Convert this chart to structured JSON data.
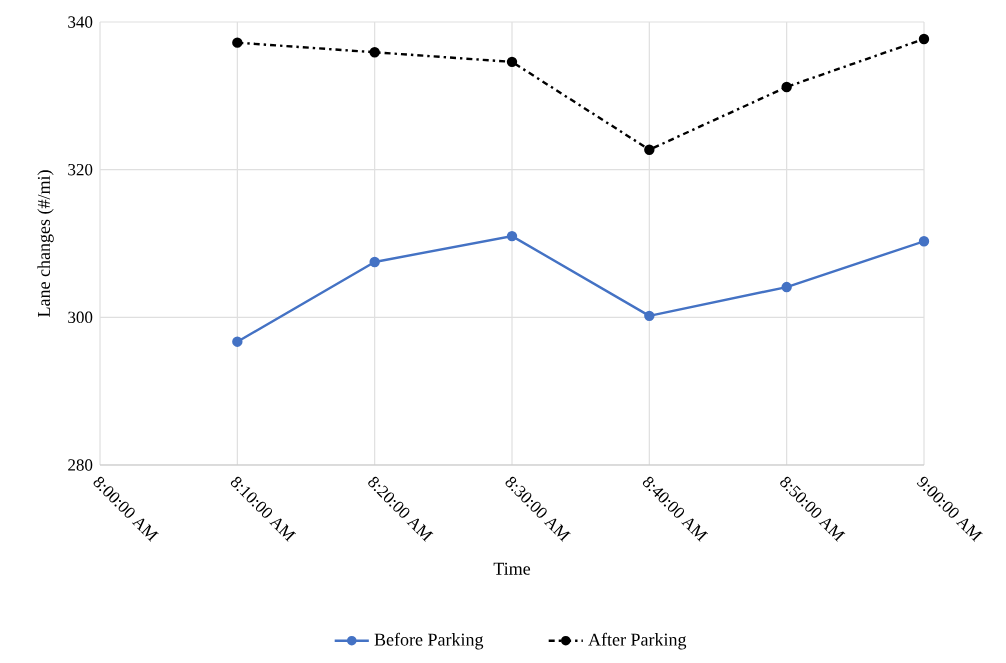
{
  "chart_data": {
    "type": "line",
    "xlabel": "Time",
    "ylabel": "Lane changes (#/mi)",
    "categories": [
      "8:00:00 AM",
      "8:10:00 AM",
      "8:20:00 AM",
      "8:30:00 AM",
      "8:40:00 AM",
      "8:50:00 AM",
      "9:00:00 AM"
    ],
    "series": [
      {
        "name": "Before Parking",
        "color": "#4472c4",
        "line_style": "solid",
        "values": [
          null,
          296.7,
          307.5,
          311.0,
          300.2,
          304.1,
          310.3
        ]
      },
      {
        "name": "After Parking",
        "color": "#000000",
        "line_style": "dashdot",
        "values": [
          null,
          337.2,
          335.9,
          334.6,
          322.7,
          331.2,
          337.7
        ]
      }
    ],
    "ylim": [
      280,
      340
    ],
    "yticks": [
      280,
      300,
      320,
      340
    ],
    "grid": true,
    "legend": "bottom",
    "marker": "circle"
  }
}
